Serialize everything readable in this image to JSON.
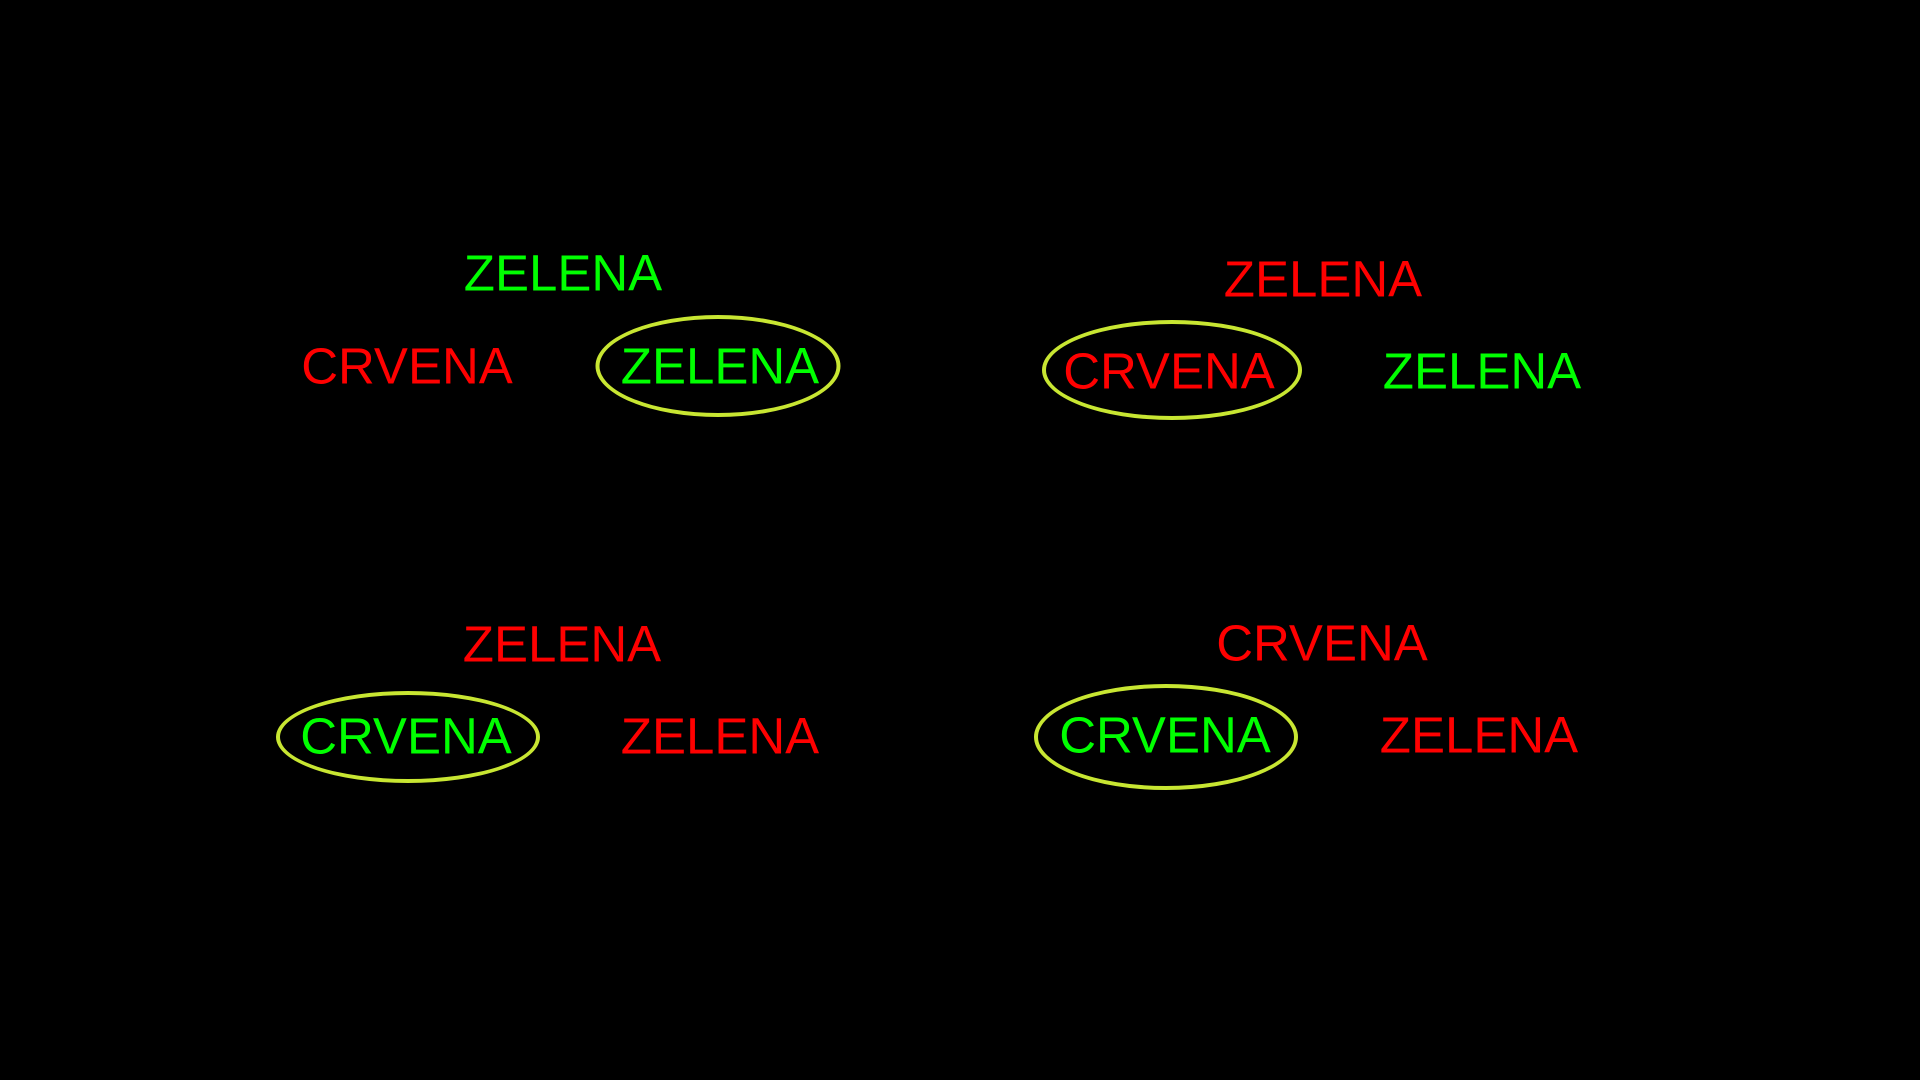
{
  "colors": {
    "background": "#000000",
    "red": "#ff0000",
    "green": "#00ff00",
    "ring": "#c8e632"
  },
  "panels": [
    {
      "top": {
        "text": "ZELENA",
        "color": "green"
      },
      "left": {
        "text": "CRVENA",
        "color": "red"
      },
      "right": {
        "text": "ZELENA",
        "color": "green"
      },
      "circled": "right"
    },
    {
      "top": {
        "text": "ZELENA",
        "color": "red"
      },
      "left": {
        "text": "CRVENA",
        "color": "red"
      },
      "right": {
        "text": "ZELENA",
        "color": "green"
      },
      "circled": "left"
    },
    {
      "top": {
        "text": "ZELENA",
        "color": "red"
      },
      "left": {
        "text": "CRVENA",
        "color": "green"
      },
      "right": {
        "text": "ZELENA",
        "color": "red"
      },
      "circled": "left"
    },
    {
      "top": {
        "text": "CRVENA",
        "color": "red"
      },
      "left": {
        "text": "CRVENA",
        "color": "green"
      },
      "right": {
        "text": "ZELENA",
        "color": "red"
      },
      "circled": "left"
    }
  ]
}
